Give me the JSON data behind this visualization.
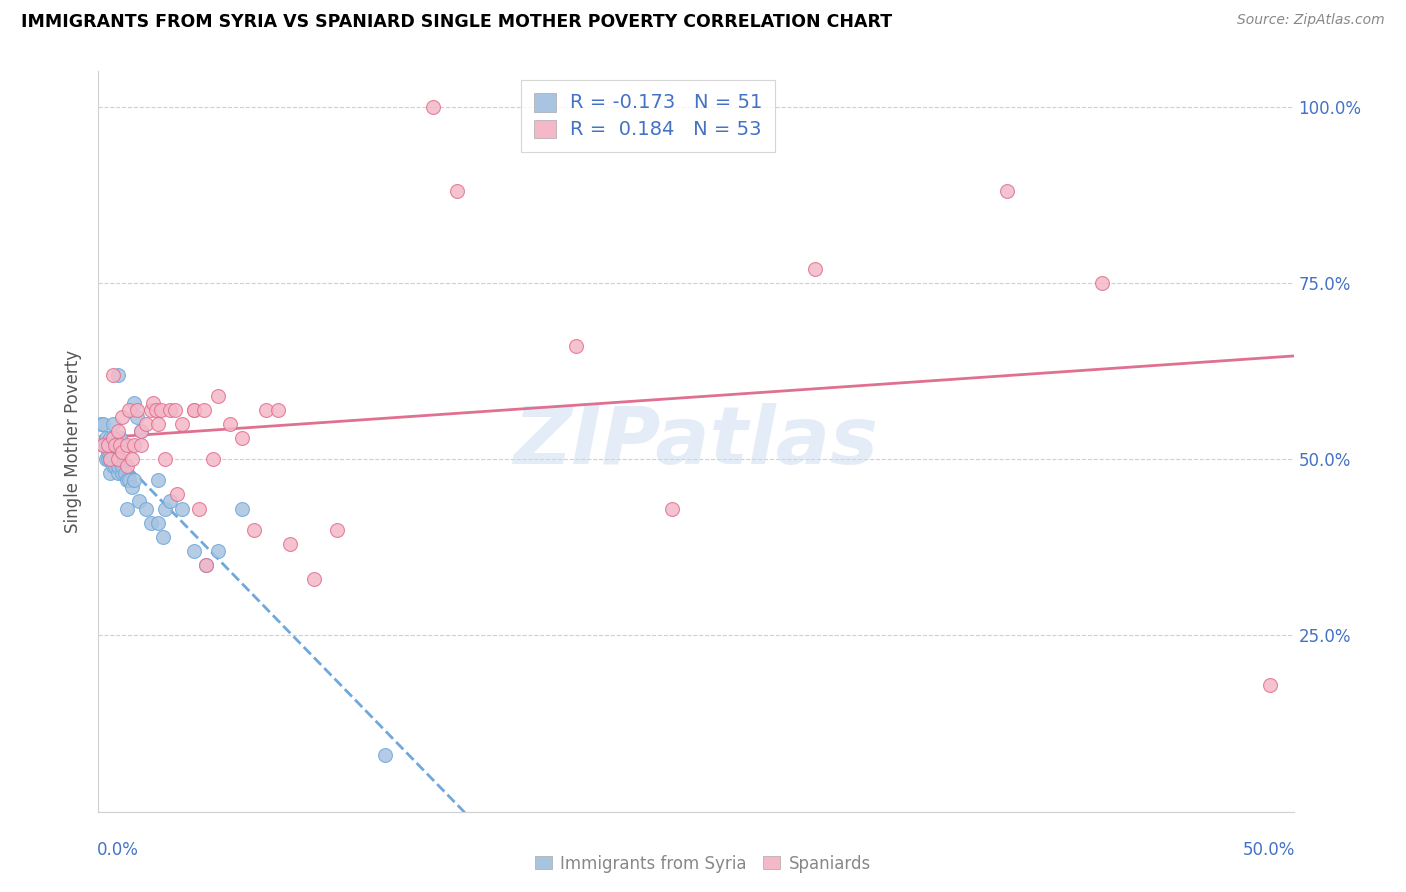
{
  "title": "IMMIGRANTS FROM SYRIA VS SPANIARD SINGLE MOTHER POVERTY CORRELATION CHART",
  "source": "Source: ZipAtlas.com",
  "ylabel": "Single Mother Poverty",
  "yticks": [
    0.0,
    0.25,
    0.5,
    0.75,
    1.0
  ],
  "ytick_labels": [
    "",
    "25.0%",
    "50.0%",
    "75.0%",
    "100.0%"
  ],
  "xticks": [
    0.0,
    0.1,
    0.2,
    0.3,
    0.4,
    0.5
  ],
  "xlim": [
    0.0,
    0.5
  ],
  "ylim": [
    0.0,
    1.05
  ],
  "color_syria": "#a8c4e0",
  "color_spaniard": "#f4b8c8",
  "color_syria_line": "#6fa8dc",
  "color_spaniard_line": "#e07090",
  "watermark": "ZIPatlas",
  "syria_x": [
    0.001,
    0.002,
    0.002,
    0.003,
    0.003,
    0.003,
    0.004,
    0.004,
    0.004,
    0.004,
    0.005,
    0.005,
    0.005,
    0.005,
    0.006,
    0.006,
    0.006,
    0.006,
    0.007,
    0.007,
    0.007,
    0.008,
    0.008,
    0.008,
    0.009,
    0.009,
    0.01,
    0.01,
    0.011,
    0.012,
    0.012,
    0.013,
    0.014,
    0.015,
    0.015,
    0.016,
    0.017,
    0.018,
    0.02,
    0.022,
    0.025,
    0.025,
    0.027,
    0.028,
    0.03,
    0.035,
    0.04,
    0.045,
    0.05,
    0.06,
    0.12
  ],
  "syria_y": [
    0.55,
    0.52,
    0.55,
    0.5,
    0.52,
    0.53,
    0.5,
    0.51,
    0.51,
    0.52,
    0.48,
    0.5,
    0.51,
    0.53,
    0.49,
    0.5,
    0.52,
    0.55,
    0.49,
    0.5,
    0.52,
    0.48,
    0.49,
    0.62,
    0.5,
    0.53,
    0.48,
    0.49,
    0.48,
    0.47,
    0.43,
    0.47,
    0.46,
    0.47,
    0.58,
    0.56,
    0.44,
    0.54,
    0.43,
    0.41,
    0.41,
    0.47,
    0.39,
    0.43,
    0.44,
    0.43,
    0.37,
    0.35,
    0.37,
    0.43,
    0.08
  ],
  "spaniard_x": [
    0.002,
    0.004,
    0.005,
    0.006,
    0.006,
    0.007,
    0.008,
    0.008,
    0.009,
    0.01,
    0.01,
    0.012,
    0.012,
    0.013,
    0.014,
    0.015,
    0.016,
    0.018,
    0.018,
    0.02,
    0.022,
    0.023,
    0.024,
    0.025,
    0.026,
    0.028,
    0.03,
    0.032,
    0.033,
    0.035,
    0.04,
    0.04,
    0.042,
    0.044,
    0.045,
    0.048,
    0.05,
    0.055,
    0.06,
    0.065,
    0.07,
    0.075,
    0.08,
    0.09,
    0.1,
    0.14,
    0.15,
    0.2,
    0.24,
    0.3,
    0.38,
    0.42,
    0.49
  ],
  "spaniard_y": [
    0.52,
    0.52,
    0.5,
    0.53,
    0.62,
    0.52,
    0.5,
    0.54,
    0.52,
    0.51,
    0.56,
    0.49,
    0.52,
    0.57,
    0.5,
    0.52,
    0.57,
    0.52,
    0.54,
    0.55,
    0.57,
    0.58,
    0.57,
    0.55,
    0.57,
    0.5,
    0.57,
    0.57,
    0.45,
    0.55,
    0.57,
    0.57,
    0.43,
    0.57,
    0.35,
    0.5,
    0.59,
    0.55,
    0.53,
    0.4,
    0.57,
    0.57,
    0.38,
    0.33,
    0.4,
    1.0,
    0.88,
    0.66,
    0.43,
    0.77,
    0.88,
    0.75,
    0.18
  ]
}
